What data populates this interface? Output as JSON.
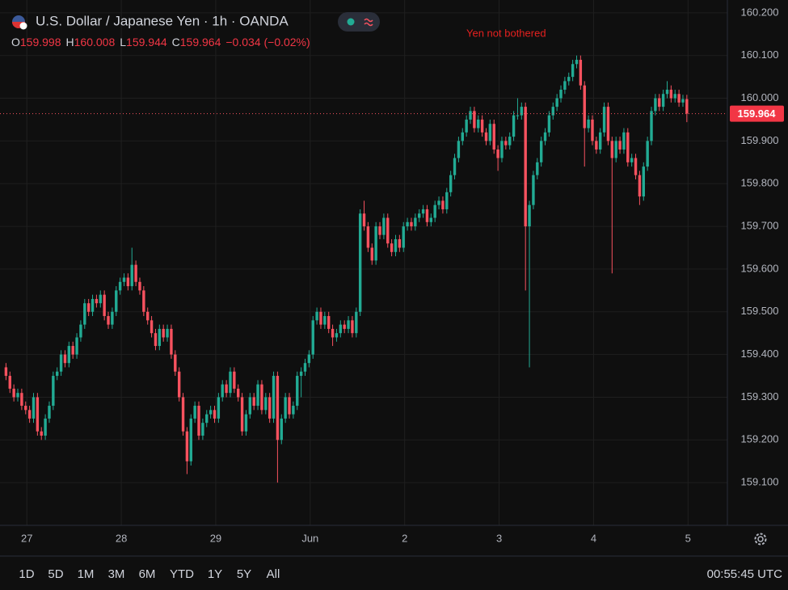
{
  "chart_data": {
    "type": "candlestick",
    "title": "U.S. Dollar / Japanese Yen · 1h · OANDA",
    "ohlc_header": [
      {
        "label": "O",
        "value": 159.998
      },
      {
        "label": "H",
        "value": 160.008
      },
      {
        "label": "L",
        "value": 159.944
      },
      {
        "label": "C",
        "value": 159.964
      }
    ],
    "change": "−0.034 (−0.02%)",
    "annotation": "Yen not bothered",
    "up_color": "#22ab94",
    "down_color": "#f7525f",
    "last_price": 159.964,
    "grid": true,
    "ylim": [
      159.0,
      160.23
    ],
    "yticks": [
      {
        "value": 159.1,
        "label": "159.100"
      },
      {
        "value": 159.2,
        "label": "159.200"
      },
      {
        "value": 159.3,
        "label": "159.300"
      },
      {
        "value": 159.4,
        "label": "159.400"
      },
      {
        "value": 159.5,
        "label": "159.500"
      },
      {
        "value": 159.6,
        "label": "159.600"
      },
      {
        "value": 159.7,
        "label": "159.700"
      },
      {
        "value": 159.8,
        "label": "159.800"
      },
      {
        "value": 159.9,
        "label": "159.900"
      },
      {
        "value": 160.0,
        "label": "160.000"
      },
      {
        "value": 160.1,
        "label": "160.100"
      },
      {
        "value": 160.2,
        "label": "160.200"
      }
    ],
    "xlim": [
      -1.52,
      183.3
    ],
    "xticks": [
      {
        "value": 5.3,
        "label": "27"
      },
      {
        "value": 29.3,
        "label": "28"
      },
      {
        "value": 53.3,
        "label": "29"
      },
      {
        "value": 77.3,
        "label": "Jun"
      },
      {
        "value": 101.3,
        "label": "2"
      },
      {
        "value": 125.3,
        "label": "3"
      },
      {
        "value": 149.3,
        "label": "4"
      },
      {
        "value": 173.3,
        "label": "5"
      }
    ],
    "open": [
      159.37,
      159.35,
      159.32,
      159.3,
      159.31,
      159.28,
      159.27,
      159.25,
      159.3,
      159.22,
      159.21,
      159.25,
      159.28,
      159.35,
      159.36,
      159.4,
      159.38,
      159.42,
      159.4,
      159.44,
      159.47,
      159.52,
      159.5,
      159.53,
      159.52,
      159.54,
      159.49,
      159.47,
      159.5,
      159.55,
      159.57,
      159.58,
      159.56,
      159.61,
      159.57,
      159.55,
      159.5,
      159.48,
      159.45,
      159.42,
      159.46,
      159.44,
      159.46,
      159.4,
      159.36,
      159.3,
      159.22,
      159.15,
      159.25,
      159.28,
      159.21,
      159.24,
      159.26,
      159.27,
      159.25,
      159.3,
      159.33,
      159.31,
      159.36,
      159.32,
      159.3,
      159.22,
      159.26,
      159.3,
      159.28,
      159.33,
      159.27,
      159.3,
      159.25,
      159.35,
      159.2,
      159.25,
      159.3,
      159.26,
      159.28,
      159.35,
      159.36,
      159.38,
      159.4,
      159.48,
      159.5,
      159.47,
      159.49,
      159.46,
      159.44,
      159.45,
      159.47,
      159.46,
      159.48,
      159.45,
      159.5,
      159.73,
      159.7,
      159.65,
      159.62,
      159.7,
      159.68,
      159.72,
      159.66,
      159.64,
      159.67,
      159.65,
      159.7,
      159.71,
      159.7,
      159.72,
      159.73,
      159.74,
      159.71,
      159.72,
      159.75,
      159.76,
      159.74,
      159.78,
      159.82,
      159.86,
      159.9,
      159.92,
      159.95,
      159.97,
      159.93,
      159.95,
      159.92,
      159.9,
      159.94,
      159.88,
      159.86,
      159.9,
      159.89,
      159.91,
      159.96,
      159.96,
      159.98,
      159.7,
      159.75,
      159.82,
      159.85,
      159.9,
      159.92,
      159.96,
      159.98,
      160.0,
      160.02,
      160.04,
      160.05,
      160.08,
      160.09,
      160.03,
      159.93,
      159.95,
      159.9,
      159.88,
      159.92,
      159.98,
      159.9,
      159.86,
      159.9,
      159.88,
      159.92,
      159.85,
      159.86,
      159.82,
      159.77,
      159.84,
      159.9,
      159.97,
      160.0,
      159.98,
      160.01,
      160.02,
      160.0,
      160.01,
      159.99,
      159.998
    ],
    "high": [
      159.38,
      159.36,
      159.33,
      159.32,
      159.32,
      159.29,
      159.28,
      159.31,
      159.31,
      159.23,
      159.26,
      159.29,
      159.36,
      159.37,
      159.41,
      159.41,
      159.43,
      159.43,
      159.45,
      159.48,
      159.53,
      159.53,
      159.54,
      159.54,
      159.55,
      159.55,
      159.5,
      159.51,
      159.56,
      159.58,
      159.59,
      159.59,
      159.65,
      159.62,
      159.58,
      159.56,
      159.51,
      159.49,
      159.46,
      159.47,
      159.47,
      159.47,
      159.47,
      159.41,
      159.37,
      159.31,
      159.23,
      159.26,
      159.29,
      159.29,
      159.25,
      159.27,
      159.28,
      159.28,
      159.31,
      159.34,
      159.34,
      159.37,
      159.37,
      159.33,
      159.31,
      159.27,
      159.31,
      159.31,
      159.34,
      159.34,
      159.31,
      159.31,
      159.36,
      159.36,
      159.26,
      159.31,
      159.31,
      159.29,
      159.36,
      159.37,
      159.39,
      159.41,
      159.49,
      159.51,
      159.51,
      159.5,
      159.5,
      159.47,
      159.46,
      159.48,
      159.48,
      159.49,
      159.49,
      159.51,
      159.74,
      159.76,
      159.71,
      159.66,
      159.71,
      159.71,
      159.73,
      159.73,
      159.67,
      159.68,
      159.68,
      159.71,
      159.72,
      159.72,
      159.73,
      159.74,
      159.75,
      159.75,
      159.73,
      159.76,
      159.77,
      159.77,
      159.79,
      159.83,
      159.87,
      159.91,
      159.93,
      159.96,
      159.98,
      159.98,
      159.96,
      159.96,
      159.93,
      159.95,
      159.95,
      159.89,
      159.91,
      159.91,
      159.92,
      159.97,
      160.0,
      159.99,
      159.99,
      159.76,
      159.83,
      159.86,
      159.91,
      159.93,
      159.97,
      159.99,
      160.01,
      160.03,
      160.05,
      160.06,
      160.09,
      160.1,
      160.1,
      160.04,
      159.96,
      159.96,
      159.91,
      159.93,
      159.99,
      159.99,
      159.91,
      159.91,
      159.91,
      159.93,
      159.93,
      159.87,
      159.87,
      159.83,
      159.85,
      159.91,
      159.98,
      160.01,
      160.01,
      160.02,
      160.04,
      160.03,
      160.02,
      160.02,
      160.008,
      160.008
    ],
    "low": [
      159.34,
      159.31,
      159.29,
      159.29,
      159.27,
      159.26,
      159.24,
      159.24,
      159.21,
      159.2,
      159.2,
      159.24,
      159.27,
      159.34,
      159.35,
      159.37,
      159.37,
      159.39,
      159.39,
      159.43,
      159.46,
      159.49,
      159.49,
      159.51,
      159.51,
      159.48,
      159.46,
      159.46,
      159.49,
      159.54,
      159.56,
      159.55,
      159.55,
      159.56,
      159.54,
      159.49,
      159.47,
      159.44,
      159.41,
      159.41,
      159.43,
      159.43,
      159.39,
      159.35,
      159.29,
      159.21,
      159.12,
      159.14,
      159.24,
      159.2,
      159.2,
      159.23,
      159.25,
      159.24,
      159.24,
      159.29,
      159.3,
      159.3,
      159.31,
      159.29,
      159.21,
      159.21,
      159.25,
      159.27,
      159.27,
      159.26,
      159.26,
      159.24,
      159.24,
      159.1,
      159.19,
      159.24,
      159.25,
      159.25,
      159.27,
      159.3,
      159.35,
      159.37,
      159.39,
      159.47,
      159.46,
      159.46,
      159.45,
      159.42,
      159.43,
      159.44,
      159.45,
      159.45,
      159.44,
      159.44,
      159.49,
      159.69,
      159.64,
      159.61,
      159.61,
      159.67,
      159.67,
      159.65,
      159.63,
      159.63,
      159.64,
      159.64,
      159.69,
      159.69,
      159.69,
      159.71,
      159.72,
      159.7,
      159.7,
      159.71,
      159.74,
      159.73,
      159.73,
      159.77,
      159.81,
      159.85,
      159.89,
      159.91,
      159.94,
      159.92,
      159.92,
      159.91,
      159.89,
      159.89,
      159.87,
      159.83,
      159.85,
      159.88,
      159.88,
      159.9,
      159.95,
      159.95,
      159.55,
      159.37,
      159.74,
      159.81,
      159.84,
      159.89,
      159.91,
      159.95,
      159.97,
      159.99,
      160.01,
      160.03,
      160.04,
      160.07,
      160.02,
      159.84,
      159.92,
      159.89,
      159.87,
      159.87,
      159.91,
      159.89,
      159.59,
      159.85,
      159.87,
      159.87,
      159.84,
      159.84,
      159.81,
      159.75,
      159.76,
      159.83,
      159.89,
      159.96,
      159.97,
      159.97,
      160.0,
      159.99,
      159.99,
      159.98,
      159.98,
      159.944
    ],
    "close": [
      159.35,
      159.32,
      159.3,
      159.31,
      159.28,
      159.27,
      159.25,
      159.3,
      159.22,
      159.21,
      159.25,
      159.28,
      159.35,
      159.36,
      159.4,
      159.38,
      159.42,
      159.4,
      159.44,
      159.47,
      159.52,
      159.5,
      159.53,
      159.52,
      159.54,
      159.49,
      159.47,
      159.5,
      159.55,
      159.57,
      159.58,
      159.56,
      159.61,
      159.57,
      159.55,
      159.5,
      159.48,
      159.45,
      159.42,
      159.46,
      159.44,
      159.46,
      159.4,
      159.36,
      159.3,
      159.22,
      159.15,
      159.25,
      159.28,
      159.21,
      159.24,
      159.26,
      159.27,
      159.25,
      159.3,
      159.33,
      159.31,
      159.36,
      159.32,
      159.3,
      159.22,
      159.26,
      159.3,
      159.28,
      159.33,
      159.27,
      159.3,
      159.25,
      159.35,
      159.2,
      159.25,
      159.3,
      159.26,
      159.28,
      159.35,
      159.36,
      159.38,
      159.4,
      159.48,
      159.5,
      159.47,
      159.49,
      159.46,
      159.44,
      159.45,
      159.47,
      159.46,
      159.48,
      159.45,
      159.5,
      159.73,
      159.7,
      159.65,
      159.62,
      159.7,
      159.68,
      159.72,
      159.66,
      159.64,
      159.67,
      159.65,
      159.7,
      159.71,
      159.7,
      159.72,
      159.73,
      159.74,
      159.71,
      159.72,
      159.75,
      159.76,
      159.74,
      159.78,
      159.82,
      159.86,
      159.9,
      159.92,
      159.95,
      159.97,
      159.93,
      159.95,
      159.92,
      159.9,
      159.94,
      159.88,
      159.86,
      159.9,
      159.89,
      159.91,
      159.96,
      159.96,
      159.98,
      159.7,
      159.75,
      159.82,
      159.85,
      159.9,
      159.92,
      159.96,
      159.98,
      160.0,
      160.02,
      160.04,
      160.05,
      160.08,
      160.09,
      160.03,
      159.93,
      159.95,
      159.9,
      159.88,
      159.92,
      159.98,
      159.9,
      159.86,
      159.9,
      159.88,
      159.92,
      159.85,
      159.86,
      159.82,
      159.77,
      159.84,
      159.9,
      159.97,
      160.0,
      159.98,
      160.01,
      160.02,
      160.0,
      160.01,
      159.99,
      159.998,
      159.964
    ]
  },
  "toolbar": {
    "ranges": [
      "1D",
      "5D",
      "1M",
      "3M",
      "6M",
      "YTD",
      "1Y",
      "5Y",
      "All"
    ],
    "time": "00:55:45 UTC"
  }
}
